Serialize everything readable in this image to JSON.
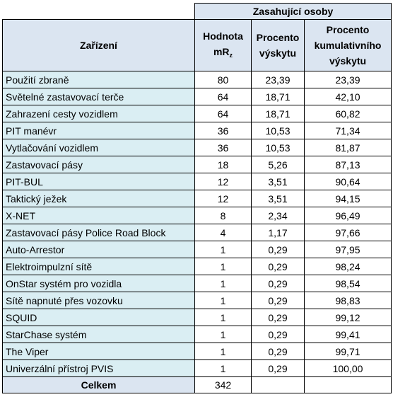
{
  "table": {
    "group_header": "Zasahující osoby",
    "columns": {
      "device": "Zařízení",
      "value_line1": "Hodnota",
      "value_base": "mR",
      "value_sub": "z",
      "percent_line1": "Procento",
      "percent_line2": "výskytu",
      "cumulative_line1": "Procento",
      "cumulative_line2": "kumulativního",
      "cumulative_line3": "výskytu"
    },
    "rows": [
      {
        "device": "Použití zbraně",
        "value": "80",
        "percent": "23,39",
        "cumulative": "23,39"
      },
      {
        "device": "Světelné zastavovací terče",
        "value": "64",
        "percent": "18,71",
        "cumulative": "42,10"
      },
      {
        "device": "Zahrazení cesty vozidlem",
        "value": "64",
        "percent": "18,71",
        "cumulative": "60,82"
      },
      {
        "device": "PIT manévr",
        "value": "36",
        "percent": "10,53",
        "cumulative": "71,34"
      },
      {
        "device": "Vytlačování vozidlem",
        "value": "36",
        "percent": "10,53",
        "cumulative": "81,87"
      },
      {
        "device": "Zastavovací pásy",
        "value": "18",
        "percent": "5,26",
        "cumulative": "87,13"
      },
      {
        "device": "PIT-BUL",
        "value": "12",
        "percent": "3,51",
        "cumulative": "90,64"
      },
      {
        "device": "Taktický ježek",
        "value": "12",
        "percent": "3,51",
        "cumulative": "94,15"
      },
      {
        "device": "X-NET",
        "value": "8",
        "percent": "2,34",
        "cumulative": "96,49"
      },
      {
        "device": "Zastavovací pásy Police Road Block",
        "value": "4",
        "percent": "1,17",
        "cumulative": "97,66"
      },
      {
        "device": "Auto-Arrestor",
        "value": "1",
        "percent": "0,29",
        "cumulative": "97,95"
      },
      {
        "device": "Elektroimpulzní sítě",
        "value": "1",
        "percent": "0,29",
        "cumulative": "98,24"
      },
      {
        "device": "OnStar systém pro vozidla",
        "value": "1",
        "percent": "0,29",
        "cumulative": "98,54"
      },
      {
        "device": "Sítě napnuté přes vozovku",
        "value": "1",
        "percent": "0,29",
        "cumulative": "98,83"
      },
      {
        "device": "SQUID",
        "value": "1",
        "percent": "0,29",
        "cumulative": "99,12"
      },
      {
        "device": "StarChase systém",
        "value": "1",
        "percent": "0,29",
        "cumulative": "99,41"
      },
      {
        "device": "The Viper",
        "value": "1",
        "percent": "0,29",
        "cumulative": "99,71"
      },
      {
        "device": "Univerzální přístroj PVIS",
        "value": "1",
        "percent": "0,29",
        "cumulative": "100,00"
      }
    ],
    "total": {
      "label": "Celkem",
      "value": "342"
    }
  }
}
